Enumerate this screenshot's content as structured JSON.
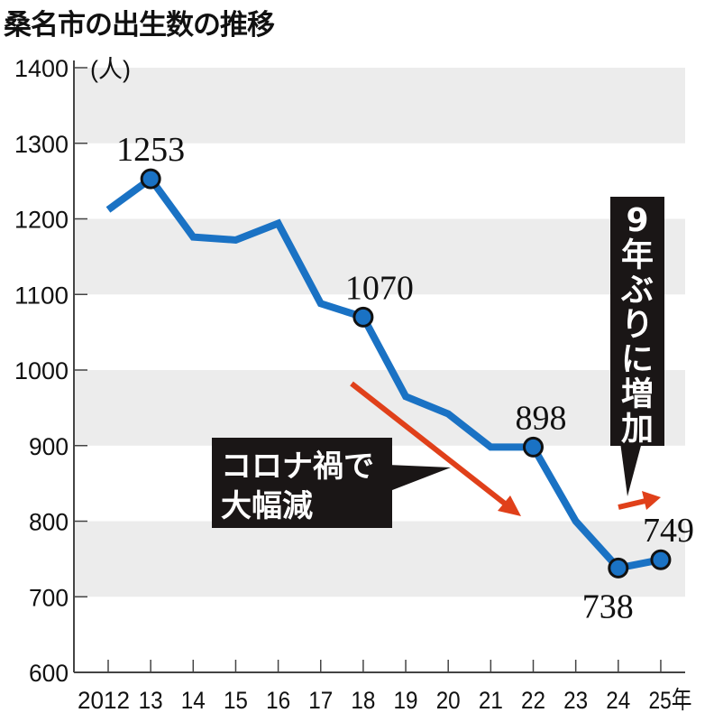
{
  "chart_data": {
    "type": "line",
    "title": "桑名市の出生数の推移",
    "ylabel": "(人)",
    "xlabel": "",
    "categories": [
      "2012",
      "13",
      "14",
      "15",
      "16",
      "17",
      "18",
      "19",
      "20",
      "21",
      "22",
      "23",
      "24",
      "25年"
    ],
    "values": [
      1212,
      1253,
      1176,
      1172,
      1194,
      1088,
      1070,
      965,
      942,
      898,
      898,
      800,
      738,
      749
    ],
    "ylim": [
      600,
      1400
    ],
    "yticks": [
      "600",
      "700",
      "800",
      "900",
      "1000",
      "1100",
      "1200",
      "1300",
      "1400"
    ],
    "labeled_points": [
      {
        "index": 1,
        "label": "1253"
      },
      {
        "index": 6,
        "label": "1070"
      },
      {
        "index": 10,
        "label": "898"
      },
      {
        "index": 12,
        "label": "738"
      },
      {
        "index": 13,
        "label": "749"
      }
    ],
    "annotations": {
      "covid_line1": "コロナ禍で",
      "covid_line2": "大幅減",
      "increase": "9年ぶりに増加"
    },
    "grid": "alternating bands",
    "colors": {
      "line": "#1a72c4",
      "arrow": "#e0401a",
      "band": "#ececec",
      "box": "#1a1616"
    }
  }
}
